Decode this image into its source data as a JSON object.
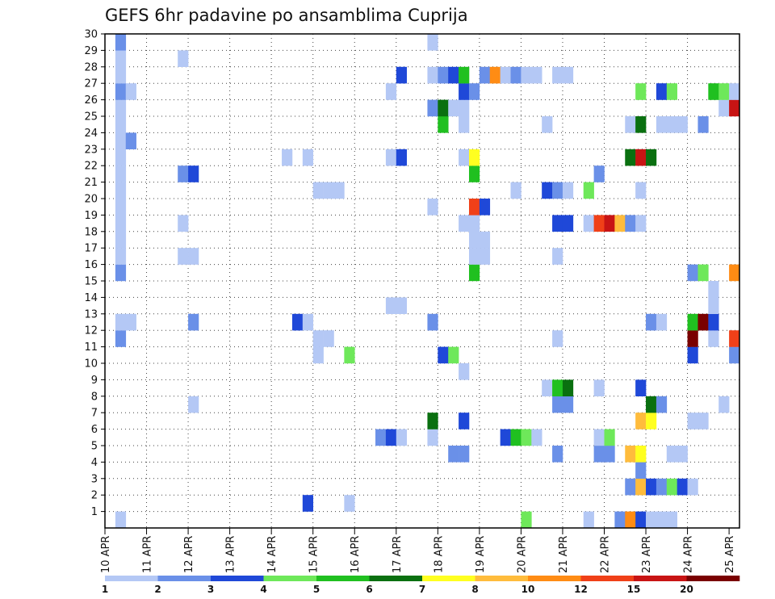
{
  "chart_data": {
    "type": "heatmap",
    "title": "GEFS 6hr padavine po ansamblima Cuprija",
    "xlabel": "",
    "ylabel": "",
    "x_tick_labels": [
      "10 APR",
      "11 APR",
      "12 APR",
      "13 APR",
      "14 APR",
      "15 APR",
      "16 APR",
      "17 APR",
      "18 APR",
      "19 APR",
      "20 APR",
      "21 APR",
      "22 APR",
      "23 APR",
      "24 APR",
      "25 APR"
    ],
    "y_tick_labels": [
      "1",
      "2",
      "3",
      "4",
      "5",
      "6",
      "7",
      "8",
      "9",
      "10",
      "11",
      "12",
      "13",
      "14",
      "15",
      "16",
      "17",
      "18",
      "19",
      "20",
      "21",
      "22",
      "23",
      "24",
      "25",
      "26",
      "27",
      "28",
      "29",
      "30"
    ],
    "time_step_hours": 6,
    "member_range": [
      0,
      30
    ],
    "grid": true,
    "colorbar": {
      "levels": [
        "1",
        "2",
        "3",
        "4",
        "5",
        "6",
        "7",
        "8",
        "10",
        "12",
        "15",
        "20"
      ],
      "colors": [
        "#b4c8f5",
        "#6a90e8",
        "#1f48d8",
        "#6ee85a",
        "#20c020",
        "#0a7010",
        "#ffff20",
        "#ffbc3c",
        "#ff8c14",
        "#f04018",
        "#c81414",
        "#7a0000"
      ]
    },
    "cells": [
      {
        "m": 0,
        "t": 1,
        "c": 0
      },
      {
        "m": 0,
        "t": 40,
        "c": 3
      },
      {
        "m": 0,
        "t": 46,
        "c": 0
      },
      {
        "m": 0,
        "t": 49,
        "c": 1
      },
      {
        "m": 0,
        "t": 50,
        "c": 8
      },
      {
        "m": 0,
        "t": 51,
        "c": 2
      },
      {
        "m": 0,
        "t": 52,
        "c": 0
      },
      {
        "m": 0,
        "t": 53,
        "c": 0
      },
      {
        "m": 0,
        "t": 54,
        "c": 0
      },
      {
        "m": 1,
        "t": 19,
        "c": 2
      },
      {
        "m": 1,
        "t": 23,
        "c": 0
      },
      {
        "m": 2,
        "t": 50,
        "c": 1
      },
      {
        "m": 2,
        "t": 51,
        "c": 7
      },
      {
        "m": 2,
        "t": 52,
        "c": 2
      },
      {
        "m": 2,
        "t": 53,
        "c": 1
      },
      {
        "m": 2,
        "t": 54,
        "c": 3
      },
      {
        "m": 2,
        "t": 55,
        "c": 2
      },
      {
        "m": 2,
        "t": 56,
        "c": 0
      },
      {
        "m": 3,
        "t": 51,
        "c": 1
      },
      {
        "m": 4,
        "t": 33,
        "c": 1
      },
      {
        "m": 4,
        "t": 34,
        "c": 1
      },
      {
        "m": 4,
        "t": 43,
        "c": 1
      },
      {
        "m": 4,
        "t": 47,
        "c": 1
      },
      {
        "m": 4,
        "t": 48,
        "c": 1
      },
      {
        "m": 4,
        "t": 50,
        "c": 7
      },
      {
        "m": 4,
        "t": 51,
        "c": 6
      },
      {
        "m": 4,
        "t": 54,
        "c": 0
      },
      {
        "m": 4,
        "t": 55,
        "c": 0
      },
      {
        "m": 5,
        "t": 26,
        "c": 1
      },
      {
        "m": 5,
        "t": 27,
        "c": 2
      },
      {
        "m": 5,
        "t": 28,
        "c": 0
      },
      {
        "m": 5,
        "t": 31,
        "c": 0
      },
      {
        "m": 5,
        "t": 38,
        "c": 2
      },
      {
        "m": 5,
        "t": 39,
        "c": 4
      },
      {
        "m": 5,
        "t": 40,
        "c": 3
      },
      {
        "m": 5,
        "t": 41,
        "c": 0
      },
      {
        "m": 5,
        "t": 47,
        "c": 0
      },
      {
        "m": 5,
        "t": 48,
        "c": 3
      },
      {
        "m": 6,
        "t": 31,
        "c": 5
      },
      {
        "m": 6,
        "t": 34,
        "c": 2
      },
      {
        "m": 6,
        "t": 51,
        "c": 7
      },
      {
        "m": 6,
        "t": 52,
        "c": 6
      },
      {
        "m": 6,
        "t": 56,
        "c": 0
      },
      {
        "m": 6,
        "t": 57,
        "c": 0
      },
      {
        "m": 7,
        "t": 8,
        "c": 0
      },
      {
        "m": 7,
        "t": 43,
        "c": 1
      },
      {
        "m": 7,
        "t": 44,
        "c": 1
      },
      {
        "m": 7,
        "t": 52,
        "c": 5
      },
      {
        "m": 7,
        "t": 53,
        "c": 1
      },
      {
        "m": 7,
        "t": 59,
        "c": 0
      },
      {
        "m": 8,
        "t": 42,
        "c": 0
      },
      {
        "m": 8,
        "t": 43,
        "c": 4
      },
      {
        "m": 8,
        "t": 44,
        "c": 5
      },
      {
        "m": 8,
        "t": 47,
        "c": 0
      },
      {
        "m": 8,
        "t": 51,
        "c": 2
      },
      {
        "m": 9,
        "t": 34,
        "c": 0
      },
      {
        "m": 10,
        "t": 20,
        "c": 0
      },
      {
        "m": 10,
        "t": 23,
        "c": 3
      },
      {
        "m": 10,
        "t": 32,
        "c": 2
      },
      {
        "m": 10,
        "t": 33,
        "c": 3
      },
      {
        "m": 10,
        "t": 56,
        "c": 2
      },
      {
        "m": 10,
        "t": 60,
        "c": 1
      },
      {
        "m": 11,
        "t": 1,
        "c": 1
      },
      {
        "m": 11,
        "t": 20,
        "c": 0
      },
      {
        "m": 11,
        "t": 21,
        "c": 0
      },
      {
        "m": 11,
        "t": 43,
        "c": 0
      },
      {
        "m": 11,
        "t": 56,
        "c": 11
      },
      {
        "m": 11,
        "t": 58,
        "c": 0
      },
      {
        "m": 11,
        "t": 60,
        "c": 9
      },
      {
        "m": 12,
        "t": 1,
        "c": 0
      },
      {
        "m": 12,
        "t": 2,
        "c": 0
      },
      {
        "m": 12,
        "t": 8,
        "c": 1
      },
      {
        "m": 12,
        "t": 18,
        "c": 2
      },
      {
        "m": 12,
        "t": 19,
        "c": 0
      },
      {
        "m": 12,
        "t": 31,
        "c": 1
      },
      {
        "m": 12,
        "t": 52,
        "c": 1
      },
      {
        "m": 12,
        "t": 53,
        "c": 0
      },
      {
        "m": 12,
        "t": 56,
        "c": 4
      },
      {
        "m": 12,
        "t": 57,
        "c": 11
      },
      {
        "m": 12,
        "t": 58,
        "c": 2
      },
      {
        "m": 13,
        "t": 27,
        "c": 0
      },
      {
        "m": 13,
        "t": 28,
        "c": 0
      },
      {
        "m": 13,
        "t": 58,
        "c": 0
      },
      {
        "m": 14,
        "t": 58,
        "c": 0
      },
      {
        "m": 15,
        "t": 1,
        "c": 1
      },
      {
        "m": 15,
        "t": 35,
        "c": 4
      },
      {
        "m": 15,
        "t": 56,
        "c": 1
      },
      {
        "m": 15,
        "t": 57,
        "c": 3
      },
      {
        "m": 15,
        "t": 60,
        "c": 8
      },
      {
        "m": 16,
        "t": 1,
        "c": 0
      },
      {
        "m": 16,
        "t": 7,
        "c": 0
      },
      {
        "m": 16,
        "t": 8,
        "c": 0
      },
      {
        "m": 16,
        "t": 35,
        "c": 0
      },
      {
        "m": 16,
        "t": 36,
        "c": 0
      },
      {
        "m": 16,
        "t": 43,
        "c": 0
      },
      {
        "m": 17,
        "t": 1,
        "c": 0
      },
      {
        "m": 17,
        "t": 35,
        "c": 0
      },
      {
        "m": 17,
        "t": 36,
        "c": 0
      },
      {
        "m": 18,
        "t": 1,
        "c": 0
      },
      {
        "m": 18,
        "t": 7,
        "c": 0
      },
      {
        "m": 18,
        "t": 34,
        "c": 0
      },
      {
        "m": 18,
        "t": 35,
        "c": 0
      },
      {
        "m": 18,
        "t": 43,
        "c": 2
      },
      {
        "m": 18,
        "t": 44,
        "c": 2
      },
      {
        "m": 18,
        "t": 46,
        "c": 0
      },
      {
        "m": 18,
        "t": 47,
        "c": 9
      },
      {
        "m": 18,
        "t": 48,
        "c": 10
      },
      {
        "m": 18,
        "t": 49,
        "c": 7
      },
      {
        "m": 18,
        "t": 50,
        "c": 1
      },
      {
        "m": 18,
        "t": 51,
        "c": 0
      },
      {
        "m": 19,
        "t": 1,
        "c": 0
      },
      {
        "m": 19,
        "t": 31,
        "c": 0
      },
      {
        "m": 19,
        "t": 35,
        "c": 9
      },
      {
        "m": 19,
        "t": 36,
        "c": 2
      },
      {
        "m": 20,
        "t": 1,
        "c": 0
      },
      {
        "m": 20,
        "t": 20,
        "c": 0
      },
      {
        "m": 20,
        "t": 21,
        "c": 0
      },
      {
        "m": 20,
        "t": 22,
        "c": 0
      },
      {
        "m": 20,
        "t": 39,
        "c": 0
      },
      {
        "m": 20,
        "t": 42,
        "c": 2
      },
      {
        "m": 20,
        "t": 43,
        "c": 1
      },
      {
        "m": 20,
        "t": 44,
        "c": 0
      },
      {
        "m": 20,
        "t": 46,
        "c": 3
      },
      {
        "m": 20,
        "t": 51,
        "c": 0
      },
      {
        "m": 21,
        "t": 1,
        "c": 0
      },
      {
        "m": 21,
        "t": 7,
        "c": 1
      },
      {
        "m": 21,
        "t": 8,
        "c": 2
      },
      {
        "m": 21,
        "t": 35,
        "c": 4
      },
      {
        "m": 21,
        "t": 47,
        "c": 1
      },
      {
        "m": 22,
        "t": 1,
        "c": 0
      },
      {
        "m": 22,
        "t": 17,
        "c": 0
      },
      {
        "m": 22,
        "t": 19,
        "c": 0
      },
      {
        "m": 22,
        "t": 27,
        "c": 0
      },
      {
        "m": 22,
        "t": 28,
        "c": 2
      },
      {
        "m": 22,
        "t": 34,
        "c": 0
      },
      {
        "m": 22,
        "t": 35,
        "c": 6
      },
      {
        "m": 22,
        "t": 50,
        "c": 5
      },
      {
        "m": 22,
        "t": 51,
        "c": 10
      },
      {
        "m": 22,
        "t": 52,
        "c": 5
      },
      {
        "m": 23,
        "t": 1,
        "c": 0
      },
      {
        "m": 23,
        "t": 2,
        "c": 1
      },
      {
        "m": 24,
        "t": 1,
        "c": 0
      },
      {
        "m": 24,
        "t": 32,
        "c": 4
      },
      {
        "m": 24,
        "t": 34,
        "c": 0
      },
      {
        "m": 24,
        "t": 42,
        "c": 0
      },
      {
        "m": 24,
        "t": 50,
        "c": 0
      },
      {
        "m": 24,
        "t": 51,
        "c": 5
      },
      {
        "m": 24,
        "t": 53,
        "c": 0
      },
      {
        "m": 24,
        "t": 54,
        "c": 0
      },
      {
        "m": 24,
        "t": 55,
        "c": 0
      },
      {
        "m": 24,
        "t": 57,
        "c": 1
      },
      {
        "m": 25,
        "t": 1,
        "c": 0
      },
      {
        "m": 25,
        "t": 31,
        "c": 1
      },
      {
        "m": 25,
        "t": 32,
        "c": 5
      },
      {
        "m": 25,
        "t": 33,
        "c": 0
      },
      {
        "m": 25,
        "t": 34,
        "c": 0
      },
      {
        "m": 25,
        "t": 59,
        "c": 0
      },
      {
        "m": 25,
        "t": 60,
        "c": 10
      },
      {
        "m": 26,
        "t": 1,
        "c": 1
      },
      {
        "m": 26,
        "t": 2,
        "c": 0
      },
      {
        "m": 26,
        "t": 27,
        "c": 0
      },
      {
        "m": 26,
        "t": 34,
        "c": 2
      },
      {
        "m": 26,
        "t": 35,
        "c": 1
      },
      {
        "m": 26,
        "t": 51,
        "c": 3
      },
      {
        "m": 26,
        "t": 53,
        "c": 2
      },
      {
        "m": 26,
        "t": 54,
        "c": 3
      },
      {
        "m": 26,
        "t": 58,
        "c": 4
      },
      {
        "m": 26,
        "t": 59,
        "c": 3
      },
      {
        "m": 26,
        "t": 60,
        "c": 0
      },
      {
        "m": 27,
        "t": 1,
        "c": 0
      },
      {
        "m": 27,
        "t": 28,
        "c": 2
      },
      {
        "m": 27,
        "t": 31,
        "c": 0
      },
      {
        "m": 27,
        "t": 32,
        "c": 1
      },
      {
        "m": 27,
        "t": 33,
        "c": 2
      },
      {
        "m": 27,
        "t": 34,
        "c": 4
      },
      {
        "m": 27,
        "t": 36,
        "c": 1
      },
      {
        "m": 27,
        "t": 37,
        "c": 8
      },
      {
        "m": 27,
        "t": 38,
        "c": 0
      },
      {
        "m": 27,
        "t": 39,
        "c": 1
      },
      {
        "m": 27,
        "t": 40,
        "c": 0
      },
      {
        "m": 27,
        "t": 41,
        "c": 0
      },
      {
        "m": 27,
        "t": 43,
        "c": 0
      },
      {
        "m": 27,
        "t": 44,
        "c": 0
      },
      {
        "m": 28,
        "t": 1,
        "c": 0
      },
      {
        "m": 28,
        "t": 7,
        "c": 0
      },
      {
        "m": 29,
        "t": 1,
        "c": 1
      },
      {
        "m": 29,
        "t": 31,
        "c": 0
      }
    ]
  }
}
